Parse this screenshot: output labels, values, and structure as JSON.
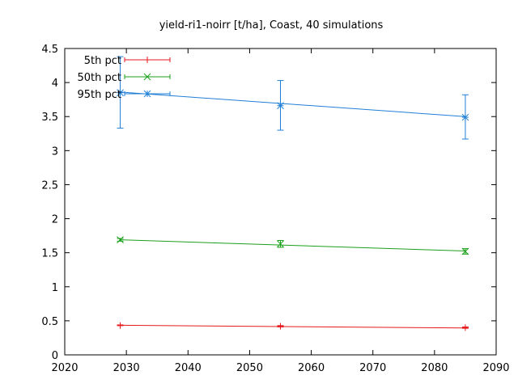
{
  "chart_data": {
    "type": "line",
    "title": "yield-ri1-noirr [t/ha], Coast, 40 simulations",
    "xlabel": "",
    "ylabel": "",
    "xlim": [
      2020,
      2090
    ],
    "ylim": [
      0,
      4.5
    ],
    "x_ticks": [
      2020,
      2030,
      2040,
      2050,
      2060,
      2070,
      2080,
      2090
    ],
    "y_ticks": [
      0,
      0.5,
      1,
      1.5,
      2,
      2.5,
      3,
      3.5,
      4,
      4.5
    ],
    "y_tick_labels": [
      "0",
      "0.5",
      "1",
      "1.5",
      "2",
      "2.5",
      "3",
      "3.5",
      "4",
      "4.5"
    ],
    "grid": false,
    "legend_position": "top-left",
    "x": [
      2029,
      2055,
      2085
    ],
    "series": [
      {
        "name": "5th pct",
        "color": "#e41a1c",
        "marker": "plus",
        "values": [
          0.43,
          0.42,
          0.4
        ],
        "err_low": [
          0.43,
          0.41,
          0.39
        ],
        "err_high": [
          0.44,
          0.43,
          0.41
        ],
        "trend": [
          0.435,
          0.395
        ]
      },
      {
        "name": "50th pct",
        "color": "#1aa01a",
        "marker": "cross",
        "values": [
          1.69,
          1.63,
          1.52
        ],
        "err_low": [
          1.67,
          1.58,
          1.48
        ],
        "err_high": [
          1.71,
          1.68,
          1.56
        ],
        "trend": [
          1.69,
          1.525
        ]
      },
      {
        "name": "95th pct",
        "color": "#1f7fd6",
        "marker": "star",
        "values": [
          3.85,
          3.66,
          3.49
        ],
        "err_low": [
          3.33,
          3.3,
          3.17
        ],
        "err_high": [
          4.38,
          4.03,
          3.82
        ],
        "trend": [
          3.86,
          3.5
        ]
      }
    ]
  }
}
